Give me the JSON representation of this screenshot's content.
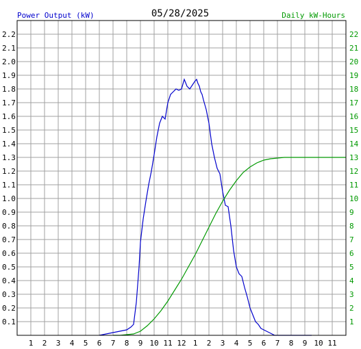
{
  "title": "05/28/2025",
  "left_axis_label": "Power Output (kW)",
  "right_axis_label": "Daily kW-Hours",
  "colors": {
    "left_label": "#0000cc",
    "right_label": "#009900",
    "power_line": "#0000cc",
    "energy_line": "#009900",
    "grid": "#a0a0a0",
    "frame": "#000000"
  },
  "chart_data": {
    "type": "line",
    "title": "05/28/2025",
    "ylabel": "Power Output (kW)",
    "y2label": "Daily kW-Hours",
    "ylim": [
      0,
      2.3
    ],
    "y2lim": [
      0,
      23
    ],
    "xlim": [
      0,
      24
    ],
    "grid": true,
    "x_tick_labels": [
      "1",
      "2",
      "3",
      "4",
      "5",
      "6",
      "7",
      "8",
      "9",
      "10",
      "11",
      "12",
      "1",
      "2",
      "3",
      "4",
      "5",
      "6",
      "7",
      "8",
      "9",
      "10",
      "11"
    ],
    "y_tick_labels": [
      "0.1",
      "0.2",
      "0.3",
      "0.4",
      "0.5",
      "0.6",
      "0.7",
      "0.8",
      "0.9",
      "1.0",
      "1.1",
      "1.2",
      "1.3",
      "1.4",
      "1.5",
      "1.6",
      "1.7",
      "1.8",
      "1.9",
      "2.0",
      "2.1",
      "2.2"
    ],
    "y2_tick_labels": [
      "1",
      "2",
      "3",
      "4",
      "5",
      "6",
      "7",
      "8",
      "9",
      "10",
      "11",
      "12",
      "13",
      "14",
      "15",
      "16",
      "17",
      "18",
      "19",
      "20",
      "21",
      "22"
    ],
    "series": [
      {
        "axis": "left",
        "color": "#0000cc",
        "x": [
          6.0,
          6.5,
          7.0,
          7.5,
          8.0,
          8.3,
          8.5,
          8.7,
          8.9,
          9.0,
          9.2,
          9.4,
          9.6,
          9.8,
          10.0,
          10.2,
          10.4,
          10.6,
          10.8,
          11.0,
          11.2,
          11.4,
          11.6,
          11.8,
          12.0,
          12.2,
          12.4,
          12.6,
          12.8,
          13.0,
          13.1,
          13.2,
          13.3,
          13.4,
          13.5,
          13.6,
          13.8,
          14.0,
          14.2,
          14.4,
          14.6,
          14.8,
          15.0,
          15.2,
          15.4,
          15.6,
          15.8,
          16.0,
          16.2,
          16.4,
          16.6,
          16.8,
          17.0,
          17.2,
          17.4,
          17.6,
          17.8,
          18.0,
          18.2,
          18.4,
          18.6,
          18.8,
          19.0,
          19.2,
          19.4,
          19.6,
          19.8,
          20.0,
          20.3,
          20.6,
          21.0,
          21.5
        ],
        "y": [
          0.0,
          0.01,
          0.02,
          0.03,
          0.04,
          0.06,
          0.08,
          0.24,
          0.5,
          0.68,
          0.85,
          0.98,
          1.1,
          1.2,
          1.32,
          1.45,
          1.55,
          1.6,
          1.58,
          1.7,
          1.76,
          1.78,
          1.8,
          1.79,
          1.8,
          1.87,
          1.82,
          1.8,
          1.83,
          1.86,
          1.87,
          1.84,
          1.82,
          1.78,
          1.76,
          1.72,
          1.65,
          1.55,
          1.4,
          1.3,
          1.22,
          1.18,
          1.05,
          0.95,
          0.94,
          0.8,
          0.62,
          0.5,
          0.45,
          0.43,
          0.35,
          0.28,
          0.2,
          0.15,
          0.1,
          0.08,
          0.05,
          0.04,
          0.03,
          0.02,
          0.01,
          0.0,
          0.0,
          0.0,
          0.0,
          0.0,
          0.0,
          0.0,
          0.0,
          0.0,
          0.0,
          0.0
        ]
      },
      {
        "axis": "right",
        "color": "#009900",
        "x": [
          7.0,
          7.5,
          8.0,
          8.5,
          9.0,
          9.5,
          10.0,
          10.5,
          11.0,
          11.5,
          12.0,
          12.5,
          13.0,
          13.5,
          14.0,
          14.5,
          15.0,
          15.5,
          16.0,
          16.5,
          17.0,
          17.5,
          18.0,
          18.5,
          19.0,
          19.5,
          20.0,
          21.0,
          22.0,
          23.0,
          24.0
        ],
        "y": [
          0.0,
          0.0,
          0.05,
          0.1,
          0.3,
          0.7,
          1.2,
          1.8,
          2.5,
          3.3,
          4.1,
          5.0,
          5.9,
          6.9,
          7.9,
          8.9,
          9.8,
          10.6,
          11.3,
          11.9,
          12.3,
          12.6,
          12.8,
          12.9,
          12.95,
          13.0,
          13.0,
          13.0,
          13.0,
          13.0,
          13.0
        ]
      }
    ]
  }
}
